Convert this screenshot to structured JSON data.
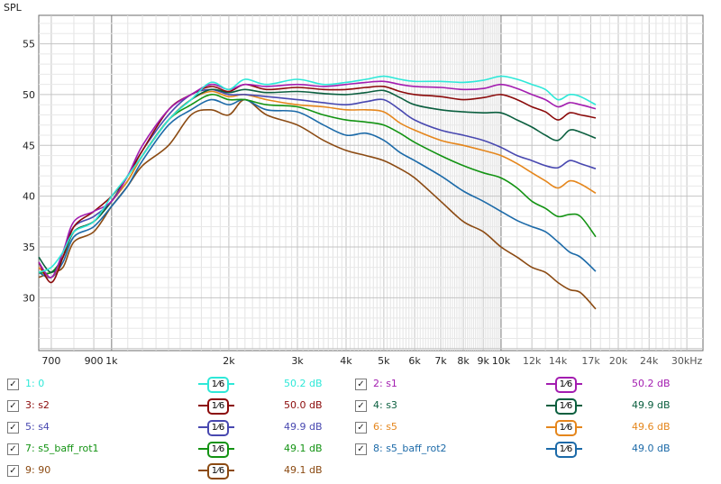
{
  "chart_data": {
    "type": "line",
    "ylabel": "SPL",
    "ylim": [
      24.8,
      57.8
    ],
    "xlim": [
      650,
      33000
    ],
    "x_scale": "log",
    "y_ticks": [
      30,
      35,
      40,
      45,
      50,
      55
    ],
    "x_ticks": [
      {
        "v": 700,
        "t": "700"
      },
      {
        "v": 900,
        "t": "900"
      },
      {
        "v": 1000,
        "t": "1k"
      },
      {
        "v": 2000,
        "t": "2k"
      },
      {
        "v": 3000,
        "t": "3k"
      },
      {
        "v": 4000,
        "t": "4k"
      },
      {
        "v": 5000,
        "t": "5k"
      },
      {
        "v": 6000,
        "t": "6k"
      },
      {
        "v": 7000,
        "t": "7k"
      },
      {
        "v": 8000,
        "t": "8k"
      },
      {
        "v": 9000,
        "t": "9k"
      },
      {
        "v": 10000,
        "t": "10k"
      },
      {
        "v": 12000,
        "t": "12k"
      },
      {
        "v": 14000,
        "t": "14k"
      },
      {
        "v": 17000,
        "t": "17k"
      },
      {
        "v": 20000,
        "t": "20k"
      },
      {
        "v": 24000,
        "t": "24k"
      },
      {
        "v": 30000,
        "t": "30kHz"
      }
    ],
    "x": [
      650,
      700,
      750,
      800,
      900,
      1000,
      1100,
      1200,
      1400,
      1600,
      1800,
      2000,
      2200,
      2500,
      3000,
      3500,
      4000,
      4500,
      5000,
      5500,
      6000,
      7000,
      8000,
      9000,
      10000,
      11000,
      12000,
      13000,
      14000,
      15000,
      16000,
      17500
    ],
    "series": [
      {
        "name": "1: 0",
        "color": "#2ee8d8",
        "values": [
          32.5,
          33,
          34.5,
          36.5,
          37.5,
          40,
          42,
          44,
          47.5,
          49.5,
          51.2,
          50.5,
          51.5,
          51,
          51.5,
          51,
          51.2,
          51.5,
          51.8,
          51.5,
          51.3,
          51.3,
          51.2,
          51.4,
          51.8,
          51.5,
          51,
          50.5,
          49.5,
          50,
          49.8,
          49
        ]
      },
      {
        "name": "2: s1",
        "color": "#a31db0",
        "values": [
          33.5,
          32,
          34.5,
          37.5,
          38.5,
          39.5,
          42,
          45,
          48.5,
          50,
          51,
          50.5,
          51,
          50.8,
          51,
          50.8,
          51,
          51.2,
          51.3,
          51,
          50.8,
          50.7,
          50.5,
          50.6,
          51,
          50.6,
          50,
          49.5,
          48.8,
          49.2,
          49,
          48.6
        ]
      },
      {
        "name": "3: s2",
        "color": "#8b0a0a",
        "values": [
          33.5,
          31.5,
          34,
          37,
          38.5,
          40,
          42,
          44.5,
          48.5,
          50,
          50.8,
          50.3,
          51,
          50.5,
          50.7,
          50.5,
          50.5,
          50.7,
          50.8,
          50.3,
          50,
          49.8,
          49.5,
          49.7,
          50,
          49.5,
          48.8,
          48.3,
          47.5,
          48.2,
          48,
          47.7
        ]
      },
      {
        "name": "4: s3",
        "color": "#0b5f3f",
        "values": [
          34,
          32.5,
          34,
          36.5,
          37.5,
          39.5,
          42,
          44,
          47.5,
          49.5,
          50.5,
          50.2,
          50.5,
          50.2,
          50.3,
          50.1,
          50,
          50.2,
          50.4,
          49.7,
          49,
          48.5,
          48.3,
          48.2,
          48.2,
          47.5,
          46.8,
          46,
          45.5,
          46.5,
          46.3,
          45.7
        ]
      },
      {
        "name": "5: s4",
        "color": "#4848b0",
        "values": [
          33.5,
          32,
          34.5,
          37,
          38,
          39.5,
          42,
          44.5,
          48,
          50,
          50.5,
          50,
          50,
          49.8,
          49.5,
          49.2,
          49,
          49.3,
          49.5,
          48.5,
          47.5,
          46.5,
          46,
          45.5,
          44.8,
          44,
          43.5,
          43,
          42.8,
          43.5,
          43.2,
          42.7
        ]
      },
      {
        "name": "6: s5",
        "color": "#e5861c",
        "values": [
          33,
          32,
          34,
          36.5,
          37.5,
          39.5,
          41.5,
          44,
          47.5,
          49.5,
          50.3,
          49.8,
          50,
          49.5,
          49,
          48.8,
          48.5,
          48.5,
          48.3,
          47.2,
          46.5,
          45.5,
          45,
          44.5,
          44,
          43.2,
          42.3,
          41.5,
          40.8,
          41.5,
          41.2,
          40.3
        ]
      },
      {
        "name": "7: s5_baff_rot1",
        "color": "#139313",
        "values": [
          32.5,
          32.5,
          34,
          36.5,
          37.5,
          39.5,
          41.5,
          44,
          47.5,
          49,
          50,
          49.5,
          49.5,
          49,
          48.8,
          48,
          47.5,
          47.3,
          47,
          46.2,
          45.3,
          44,
          43,
          42.3,
          41.8,
          40.8,
          39.5,
          38.8,
          38,
          38.2,
          38,
          36
        ]
      },
      {
        "name": "8: s5_baff_rot2",
        "color": "#1c6aa8",
        "values": [
          32.5,
          32,
          33.5,
          36,
          37,
          39,
          41,
          43.5,
          47,
          48.5,
          49.5,
          49,
          49.5,
          48.5,
          48.3,
          47,
          46,
          46.2,
          45.5,
          44.3,
          43.5,
          42,
          40.5,
          39.5,
          38.5,
          37.6,
          37,
          36.5,
          35.5,
          34.5,
          34,
          32.6
        ]
      },
      {
        "name": "9: 90",
        "color": "#8b4a12",
        "values": [
          32,
          32.5,
          33,
          35.5,
          36.5,
          39,
          41,
          43,
          45,
          48,
          48.5,
          48,
          49.5,
          48,
          47,
          45.5,
          44.5,
          44,
          43.5,
          42.7,
          41.8,
          39.5,
          37.5,
          36.5,
          35,
          34,
          33,
          32.5,
          31.5,
          30.8,
          30.5,
          28.9
        ]
      }
    ]
  },
  "legend": {
    "check_glyph": "✓",
    "smoothing_label": "1⁄6",
    "items": [
      {
        "label": "1: 0",
        "value": "50.2 dB",
        "color": "#2ee8d8"
      },
      {
        "label": "2: s1",
        "value": "50.2 dB",
        "color": "#a31db0"
      },
      {
        "label": "3: s2",
        "value": "50.0 dB",
        "color": "#8b0a0a"
      },
      {
        "label": "4: s3",
        "value": "49.9 dB",
        "color": "#0b5f3f"
      },
      {
        "label": "5: s4",
        "value": "49.9 dB",
        "color": "#4848b0"
      },
      {
        "label": "6: s5",
        "value": "49.6 dB",
        "color": "#e5861c"
      },
      {
        "label": "7: s5_baff_rot1",
        "value": "49.1 dB",
        "color": "#139313"
      },
      {
        "label": "8: s5_baff_rot2",
        "value": "49.0 dB",
        "color": "#1c6aa8"
      },
      {
        "label": "9: 90",
        "value": "49.1 dB",
        "color": "#8b4a12"
      }
    ]
  }
}
